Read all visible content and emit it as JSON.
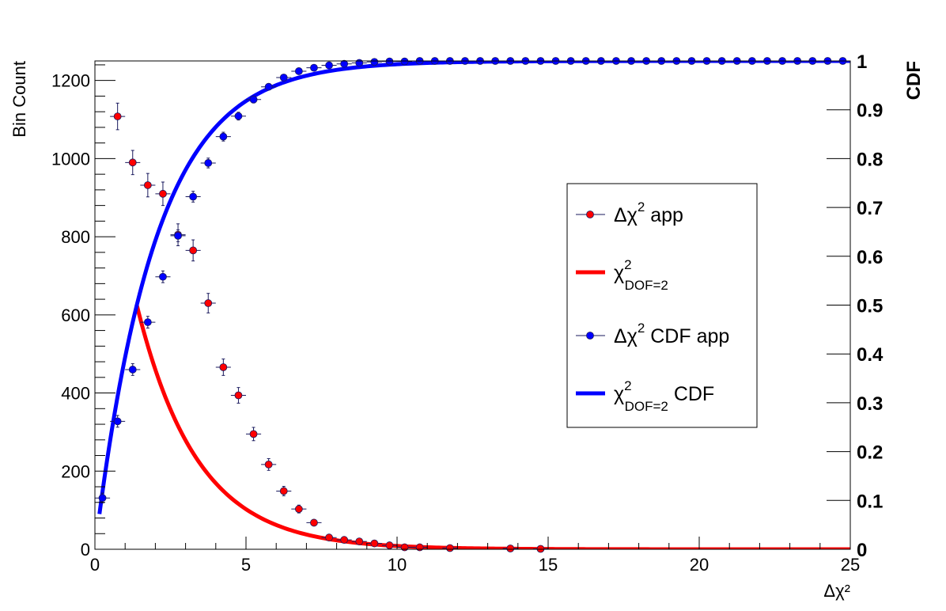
{
  "chart_data": {
    "type": "scatter",
    "title": "",
    "xlabel": "Δχ²",
    "ylabel": "Bin Count",
    "y2label": "CDF",
    "xlim": [
      0,
      25
    ],
    "ylim": [
      0,
      1250
    ],
    "y2lim": [
      0,
      1
    ],
    "x_ticks": [
      "0",
      "5",
      "10",
      "15",
      "20",
      "25"
    ],
    "y_ticks": [
      "0",
      "200",
      "400",
      "600",
      "800",
      "1000",
      "1200"
    ],
    "y2_ticks": [
      "0",
      "0.1",
      "0.2",
      "0.3",
      "0.4",
      "0.5",
      "0.6",
      "0.7",
      "0.8",
      "0.9",
      "1"
    ],
    "grid": false,
    "legend_position": "right-center",
    "series": [
      {
        "name": "Δχ² app",
        "legend": {
          "base": "Δχ",
          "sup": "2",
          "suffix": " app"
        },
        "kind": "points",
        "axis": "left",
        "color": "#ff0000",
        "x": [
          0.75,
          1.25,
          1.75,
          2.25,
          2.75,
          3.25,
          3.75,
          4.25,
          4.75,
          5.25,
          5.75,
          6.25,
          6.75,
          7.25,
          7.75,
          8.25,
          8.75,
          9.25,
          9.75,
          10.25,
          10.75,
          11.75,
          13.75,
          14.75
        ],
        "y": [
          1108,
          990,
          932,
          910,
          805,
          765,
          630,
          466,
          394,
          295,
          217,
          149,
          103,
          68,
          30,
          24,
          20,
          15,
          10,
          5,
          5,
          3,
          2,
          1
        ],
        "yerr": [
          34,
          31,
          30,
          30,
          28,
          27,
          25,
          21,
          20,
          17,
          15,
          12,
          10,
          8,
          5,
          5,
          4,
          4,
          3,
          2,
          2,
          2,
          1,
          1
        ]
      },
      {
        "name": "χ² DOF=2",
        "legend": {
          "base": "χ",
          "sup": "2",
          "sub": "DOF=2",
          "suffix": ""
        },
        "kind": "line",
        "axis": "left",
        "color": "#ff0000",
        "function": "chi2_pdf_dof2",
        "norm": 2500,
        "x_range": [
          1.38,
          25
        ]
      },
      {
        "name": "Δχ² CDF app",
        "legend": {
          "base": "Δχ",
          "sup": "2",
          "suffix": " CDF app"
        },
        "kind": "points",
        "axis": "right",
        "color": "#0000ff",
        "x": [
          0.25,
          0.75,
          1.25,
          1.75,
          2.25,
          2.75,
          3.25,
          3.75,
          4.25,
          4.75,
          5.25,
          5.75,
          6.25,
          6.75,
          7.25,
          7.75,
          8.25,
          8.75,
          9.25,
          9.75,
          10.25,
          10.75,
          11.25,
          11.75,
          12.25,
          12.75,
          13.25,
          13.75,
          14.25,
          14.75,
          15.25,
          15.75,
          16.25,
          16.75,
          17.25,
          17.75,
          18.25,
          18.75,
          19.25,
          19.75,
          20.25,
          20.75,
          21.25,
          21.75,
          22.25,
          22.75,
          23.25,
          23.75,
          24.25,
          24.75
        ],
        "y": [
          0.105,
          0.262,
          0.368,
          0.465,
          0.558,
          0.642,
          0.722,
          0.791,
          0.845,
          0.887,
          0.921,
          0.947,
          0.966,
          0.979,
          0.986,
          0.991,
          0.994,
          0.996,
          0.998,
          0.999,
          0.999,
          1.0,
          1.0,
          1.0,
          1.0,
          1.0,
          1.0,
          1.0,
          1.0,
          1.0,
          1.0,
          1.0,
          1.0,
          1.0,
          1.0,
          1.0,
          1.0,
          1.0,
          1.0,
          1.0,
          1.0,
          1.0,
          1.0,
          1.0,
          1.0,
          1.0,
          1.0,
          1.0,
          1.0,
          1.0
        ],
        "yerr": [
          0.01,
          0.012,
          0.012,
          0.012,
          0.012,
          0.012,
          0.011,
          0.01,
          0.009,
          0.008,
          0.007,
          0.006,
          0.005,
          0.004,
          0.003,
          0.003,
          0.002,
          0.002,
          0.001,
          0.001,
          0.001,
          0.0,
          0.0,
          0.0,
          0.0,
          0.0,
          0.0,
          0.0,
          0.0,
          0.0,
          0.0,
          0.0,
          0.0,
          0.0,
          0.0,
          0.0,
          0.0,
          0.0,
          0.0,
          0.0,
          0.0,
          0.0,
          0.0,
          0.0,
          0.0,
          0.0,
          0.0,
          0.0,
          0.0,
          0.0
        ]
      },
      {
        "name": "χ² DOF=2 CDF",
        "legend": {
          "base": "χ",
          "sup": "2",
          "sub": "DOF=2",
          "suffix": " CDF"
        },
        "kind": "line",
        "axis": "right",
        "color": "#0000ff",
        "function": "chi2_cdf_dof2",
        "x_range": [
          0.15,
          25
        ]
      }
    ]
  }
}
